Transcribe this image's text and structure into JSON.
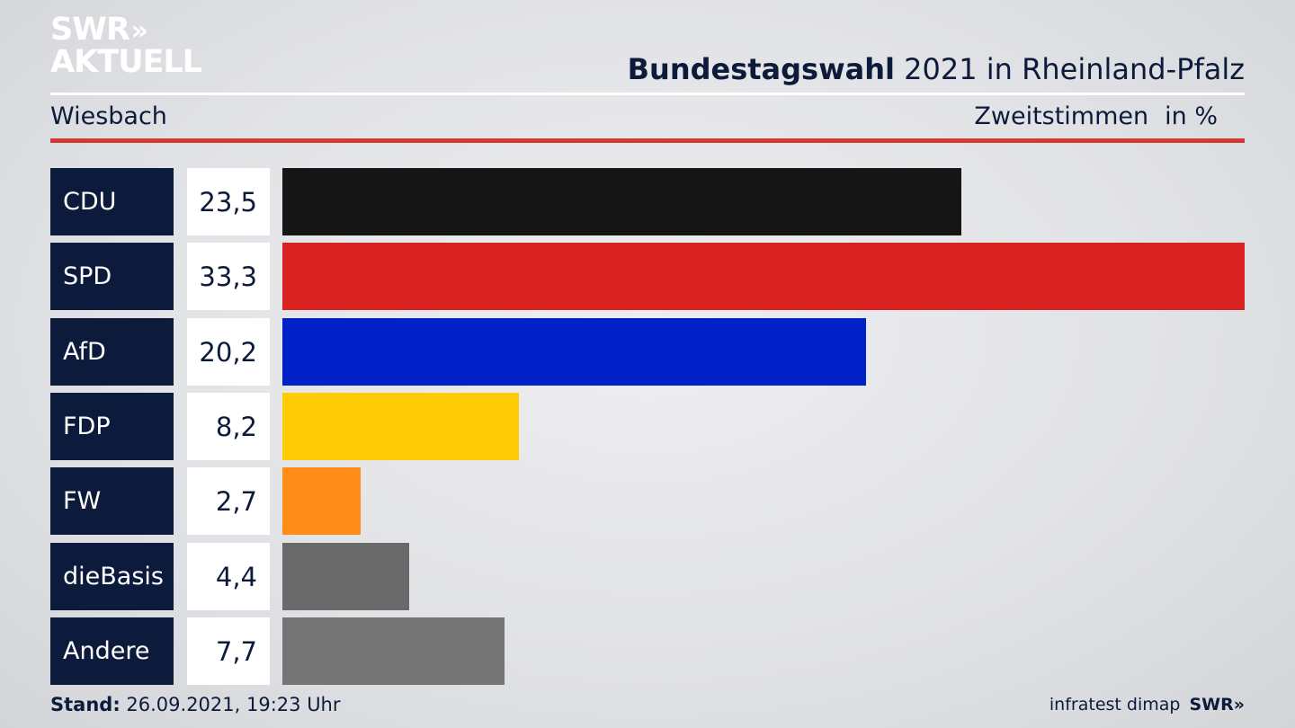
{
  "brand": {
    "line1": "SWR",
    "line1_chevrons": "»",
    "line2": "AKTUELL"
  },
  "header": {
    "title_bold": "Bundestagswahl",
    "title_rest": "2021 in Rheinland-Pfalz",
    "location": "Wiesbach",
    "measure": "Zweitstimmen",
    "unit": "in %"
  },
  "chart_data": {
    "type": "bar",
    "orientation": "horizontal",
    "categories": [
      "CDU",
      "SPD",
      "AfD",
      "FDP",
      "FW",
      "dieBasis",
      "Andere"
    ],
    "values": [
      23.5,
      33.3,
      20.2,
      8.2,
      2.7,
      4.4,
      7.7
    ],
    "value_labels": [
      "23,5",
      "33,3",
      "20,2",
      "8,2",
      "2,7",
      "4,4",
      "7,7"
    ],
    "colors": [
      "#151515",
      "#d82121",
      "#0021c8",
      "#ffcb05",
      "#ff8c17",
      "#696969",
      "#747474"
    ],
    "xlim": [
      0,
      33.3
    ],
    "grid": false,
    "legend": "none"
  },
  "footer": {
    "stand_label": "Stand:",
    "stand_value": "26.09.2021, 19:23 Uhr",
    "source": "infratest dimap",
    "brand": "SWR»"
  }
}
